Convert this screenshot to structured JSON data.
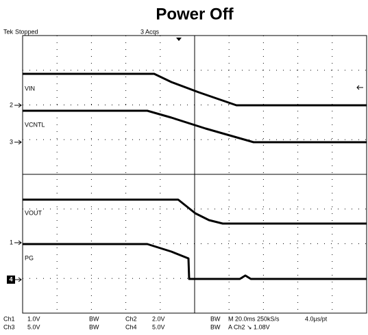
{
  "title": "Power Off",
  "header": {
    "brand": "Tek",
    "status": "Stopped",
    "acquisitions": "3 Acqs"
  },
  "traces": [
    {
      "label": "VIN"
    },
    {
      "label": "VCNTL"
    },
    {
      "label": "VOUT"
    },
    {
      "label": "PG"
    }
  ],
  "ground_markers": [
    "2",
    "3",
    "1",
    "4"
  ],
  "footer": {
    "row1": [
      "Ch1",
      "1.0V",
      "BW",
      "Ch2",
      "2.0V",
      "BW",
      "M 20.0ms 250kS/s",
      "4.0µs/pt"
    ],
    "row2": [
      "Ch3",
      "5.0V",
      "BW",
      "Ch4",
      "5.0V",
      "BW",
      "A Ch2 ↘ 1.08V"
    ]
  }
}
